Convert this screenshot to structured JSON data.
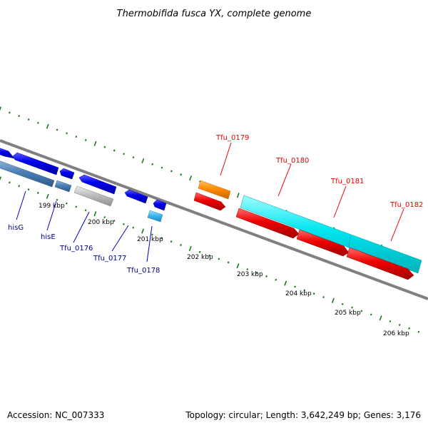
{
  "title": "Thermobifida fusca YX, complete genome",
  "footer": {
    "accession": "Accession: NC_007333",
    "summary": "Topology: circular; Length: 3,642,249 bp; Genes: 3,176"
  },
  "scale_labels": [
    "199 kbp",
    "200 kbp",
    "201 kbp",
    "202 kbp",
    "203 kbp",
    "204 kbp",
    "205 kbp",
    "206 kbp"
  ],
  "colors": {
    "backbone": "#808080",
    "tick": "#1a7a1a",
    "blue": "#0000ee",
    "steelblue": "#4a7fb5",
    "lightblue": "#5fb8e8",
    "gray": "#b8b8b8",
    "orange": "#ff8c00",
    "cyan": "#00e5ee",
    "red": "#ee0000",
    "label_blue": "#00008b",
    "label_red": "#ee0000"
  },
  "gene_labels": [
    {
      "id": "hisG",
      "text": "hisG",
      "color": "label_blue"
    },
    {
      "id": "hisE",
      "text": "hisE",
      "color": "label_blue"
    },
    {
      "id": "tfu-0176",
      "text": "Tfu_0176",
      "color": "label_blue"
    },
    {
      "id": "tfu-0177",
      "text": "Tfu_0177",
      "color": "label_blue"
    },
    {
      "id": "tfu-0178",
      "text": "Tfu_0178",
      "color": "label_blue"
    },
    {
      "id": "tfu-0179",
      "text": "Tfu_0179",
      "color": "label_red"
    },
    {
      "id": "tfu-0180",
      "text": "Tfu_0180",
      "color": "label_red"
    },
    {
      "id": "tfu-0181",
      "text": "Tfu_0181",
      "color": "label_red"
    },
    {
      "id": "tfu-0182",
      "text": "Tfu_0182",
      "color": "label_red"
    }
  ]
}
